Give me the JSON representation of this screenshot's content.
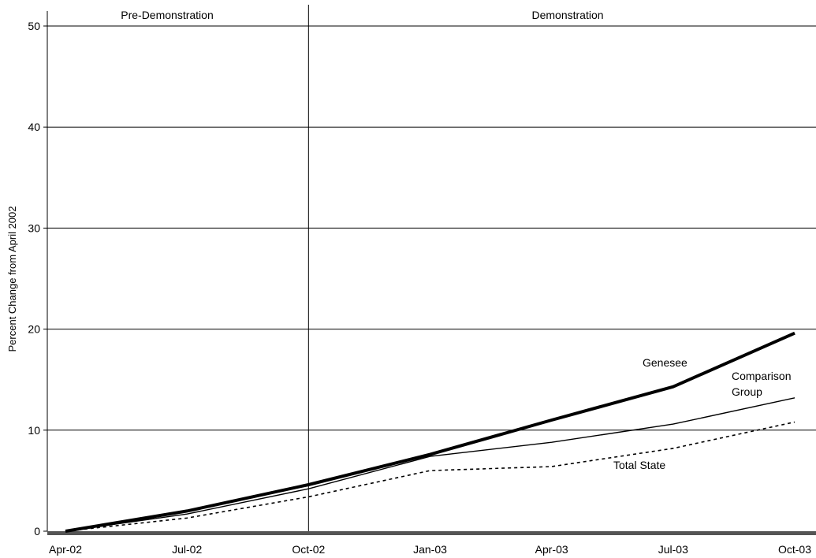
{
  "chart_data": {
    "type": "line",
    "title": "",
    "xlabel": "",
    "ylabel": "Percent Change from April 2002",
    "categories": [
      "Apr-02",
      "Jul-02",
      "Oct-02",
      "Jan-03",
      "Apr-03",
      "Jul-03",
      "Oct-03"
    ],
    "y_ticks": [
      "0",
      "10",
      "20",
      "30",
      "40",
      "50"
    ],
    "ylim": [
      0,
      50
    ],
    "grid": true,
    "series": [
      {
        "name": "Genesee",
        "values": [
          0,
          2.0,
          4.6,
          7.6,
          11.0,
          14.3,
          19.6
        ],
        "style": "thick"
      },
      {
        "name": "Comparison Group",
        "values": [
          0,
          1.7,
          4.2,
          7.4,
          8.8,
          10.6,
          13.2
        ],
        "style": "thin"
      },
      {
        "name": "Total State",
        "values": [
          0,
          1.3,
          3.4,
          6.0,
          6.4,
          8.2,
          10.8
        ],
        "style": "dashed"
      }
    ],
    "series_labels": {
      "genesee": "Genesee",
      "comparison_line1": "Comparison",
      "comparison_line2": "Group",
      "total_state": "Total State"
    },
    "periods": [
      {
        "label": "Pre-Demonstration"
      },
      {
        "label": "Demonstration"
      }
    ],
    "divider_after_category": "Oct-02"
  },
  "colors": {
    "line": "#000000",
    "grid": "#000000",
    "baseline": "#555555"
  }
}
